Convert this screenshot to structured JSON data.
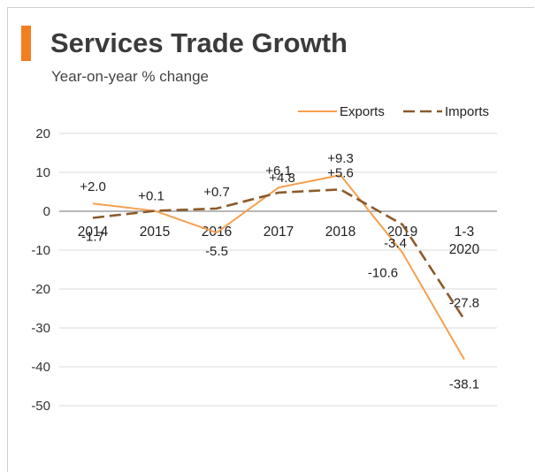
{
  "header": {
    "title": "Services Trade Growth",
    "subtitle": "Year-on-year % change",
    "accent_color": "#f47d20"
  },
  "chart_data": {
    "type": "line",
    "title": "Services Trade Growth",
    "subtitle": "Year-on-year % change",
    "xlabel": "",
    "ylabel": "",
    "categories": [
      "2014",
      "2015",
      "2016",
      "2017",
      "2018",
      "2019",
      "1-3 2020"
    ],
    "ylim": [
      -50,
      20
    ],
    "yticks": [
      20,
      10,
      0,
      -10,
      -20,
      -30,
      -40,
      -50
    ],
    "grid": true,
    "legend": "top-right",
    "series": [
      {
        "name": "Exports",
        "color": "#f5a04f",
        "style": "solid",
        "values": [
          2.0,
          0.1,
          -5.5,
          6.1,
          9.3,
          -10.6,
          -38.1
        ],
        "labels": [
          "+2.0",
          "+0.1",
          "-5.5",
          "+6.1",
          "+9.3",
          "-10.6",
          "-38.1"
        ]
      },
      {
        "name": "Imports",
        "color": "#8b5a2b",
        "style": "dashed",
        "values": [
          -1.7,
          0.1,
          0.7,
          4.8,
          5.6,
          -3.4,
          -27.8
        ],
        "labels": [
          "-1.7",
          "",
          "+0.7",
          "+4.8",
          "+5.6",
          "-3.4",
          "-27.8"
        ]
      }
    ]
  }
}
